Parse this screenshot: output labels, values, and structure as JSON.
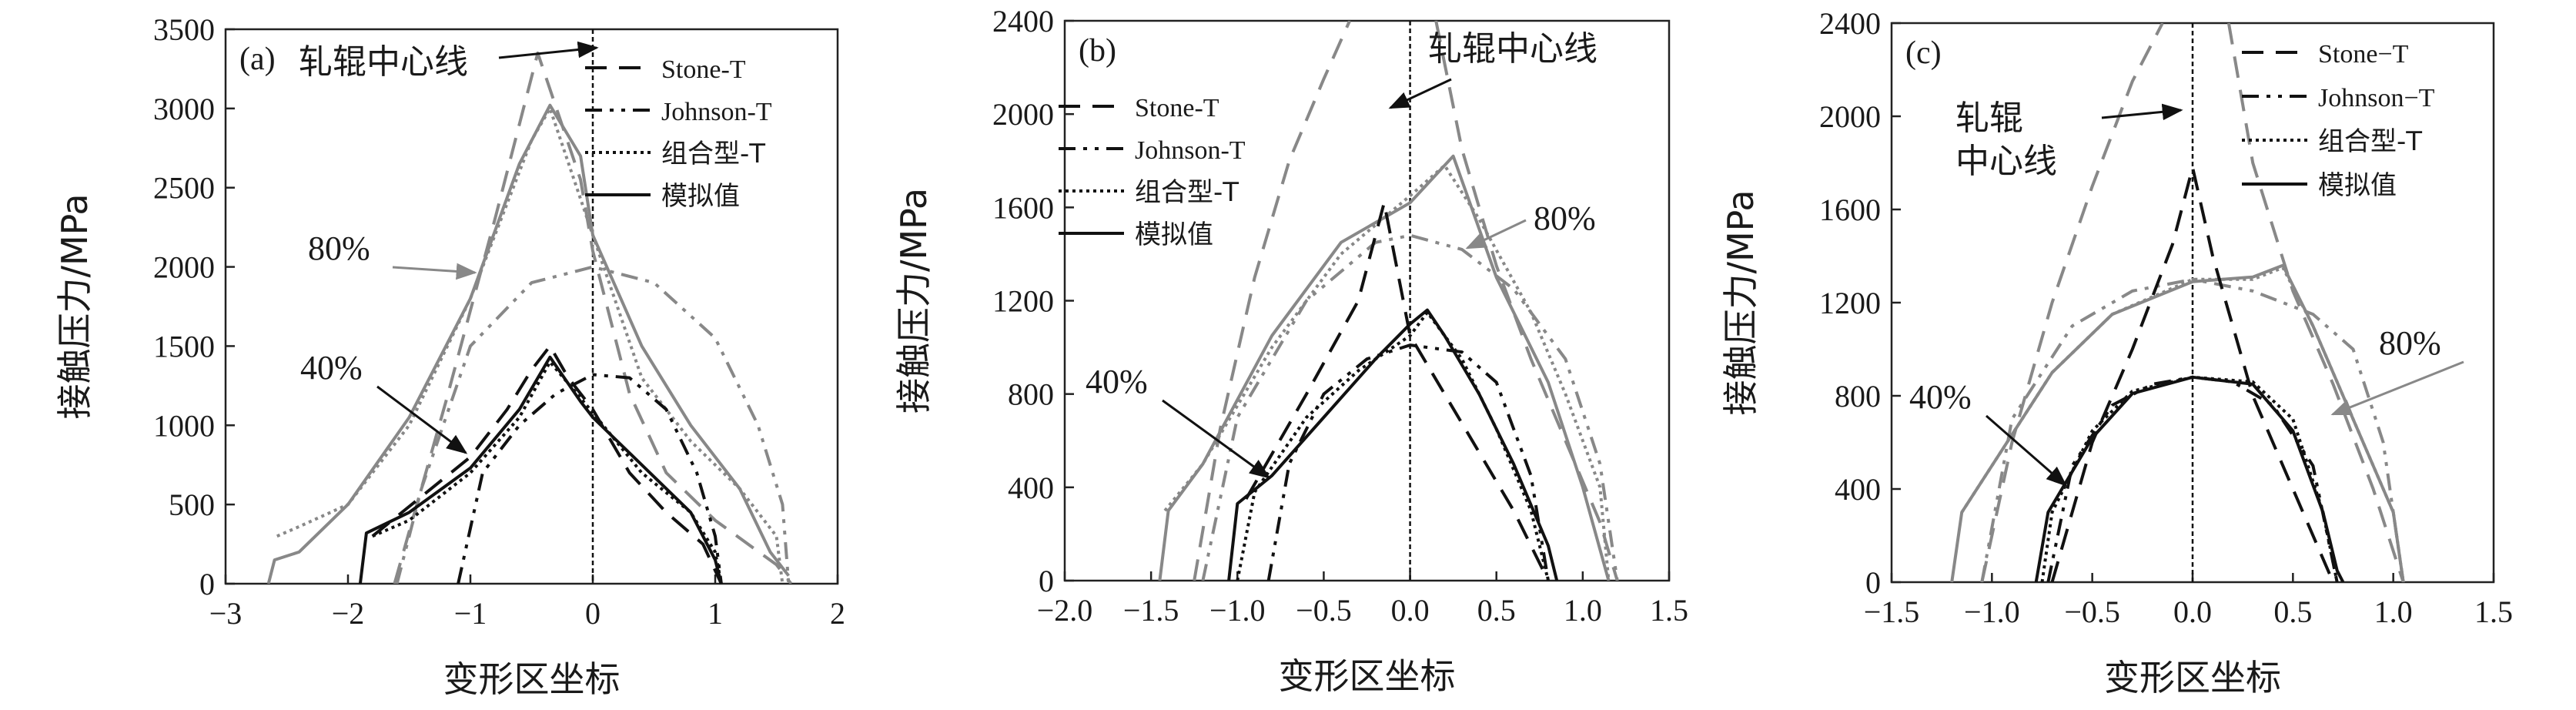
{
  "chart_data": [
    {
      "type": "line",
      "panel": "(a)",
      "xlabel": "变形区坐标",
      "ylabel": "接触压力/MPa",
      "xlim": [
        -3,
        2
      ],
      "ylim": [
        0,
        3500
      ],
      "xticks": [
        -3,
        -2,
        -1,
        0,
        1,
        2
      ],
      "yticks": [
        0,
        500,
        1000,
        1500,
        2000,
        2500,
        3000,
        3500
      ],
      "legend": [
        "Stone-T",
        "Johnson-T",
        "组合型-T",
        "模拟值"
      ],
      "legend_position": "top-right",
      "center_label": "轧辊中心线",
      "center_label_lines": [
        "轧辊中心线"
      ],
      "label_80": "80%",
      "label_40": "40%",
      "series": [
        {
          "name": "Stone-T",
          "group": "80%",
          "x": [
            -1.62,
            -1.2,
            -0.8,
            -0.45,
            -0.1,
            0.0,
            0.3,
            0.6,
            1.0,
            1.5,
            1.62
          ],
          "y": [
            0,
            1150,
            2300,
            3350,
            2550,
            2100,
            1200,
            700,
            400,
            120,
            0
          ]
        },
        {
          "name": "Johnson-T",
          "group": "80%",
          "x": [
            -1.6,
            -1.4,
            -1.0,
            -0.5,
            0.0,
            0.5,
            1.0,
            1.35,
            1.55,
            1.6
          ],
          "y": [
            0,
            600,
            1500,
            1900,
            2000,
            1900,
            1550,
            1000,
            500,
            0
          ]
        },
        {
          "name": "组合型-T",
          "group": "80%",
          "x": [
            -2.58,
            -2.4,
            -2.0,
            -1.5,
            -1.0,
            -0.5,
            -0.35,
            0.0,
            0.4,
            0.8,
            1.2,
            1.5,
            1.55
          ],
          "y": [
            300,
            360,
            500,
            1000,
            1800,
            2800,
            3000,
            2200,
            1300,
            900,
            600,
            300,
            0
          ]
        },
        {
          "name": "模拟值",
          "group": "80%",
          "x": [
            -2.65,
            -2.6,
            -2.4,
            -2.0,
            -1.5,
            -1.0,
            -0.6,
            -0.35,
            -0.1,
            0.0,
            0.4,
            0.8,
            1.2,
            1.45,
            1.6
          ],
          "y": [
            0,
            150,
            200,
            500,
            1050,
            1800,
            2650,
            3020,
            2700,
            2200,
            1500,
            1000,
            600,
            200,
            50
          ]
        },
        {
          "name": "Stone-T",
          "group": "40%",
          "x": [
            -1.8,
            -1.0,
            -0.7,
            -0.5,
            -0.35,
            -0.2,
            0.0,
            0.3,
            0.6,
            0.9,
            1.05
          ],
          "y": [
            300,
            800,
            1100,
            1350,
            1500,
            1300,
            1100,
            700,
            450,
            250,
            0
          ]
        },
        {
          "name": "Johnson-T",
          "group": "40%",
          "x": [
            -1.1,
            -0.9,
            -0.6,
            -0.3,
            0.0,
            0.3,
            0.6,
            0.85,
            1.0,
            1.05
          ],
          "y": [
            0,
            700,
            1000,
            1200,
            1320,
            1300,
            1100,
            700,
            300,
            0
          ]
        },
        {
          "name": "组合型-T",
          "group": "40%",
          "x": [
            -1.8,
            -1.5,
            -1.0,
            -0.6,
            -0.35,
            0.0,
            0.4,
            0.8,
            1.0,
            1.05
          ],
          "y": [
            300,
            400,
            700,
            1050,
            1400,
            1080,
            700,
            450,
            200,
            0
          ]
        },
        {
          "name": "模拟值",
          "group": "40%",
          "x": [
            -1.9,
            -1.85,
            -1.5,
            -1.0,
            -0.6,
            -0.35,
            -0.1,
            0.0,
            0.4,
            0.8,
            1.0,
            1.05
          ],
          "y": [
            0,
            320,
            450,
            730,
            1100,
            1430,
            1150,
            1050,
            750,
            450,
            150,
            0
          ]
        }
      ]
    },
    {
      "type": "line",
      "panel": "(b)",
      "xlabel": "变形区坐标",
      "ylabel": "接触压力/MPa",
      "xlim": [
        -2.0,
        1.5
      ],
      "ylim": [
        0,
        2400
      ],
      "xticks": [
        -2.0,
        -1.5,
        -1.0,
        -0.5,
        0.0,
        0.5,
        1.0,
        1.5
      ],
      "yticks": [
        0,
        400,
        800,
        1200,
        1600,
        2000,
        2400
      ],
      "legend": [
        "Stone-T",
        "Johnson-T",
        "组合型-T",
        "模拟值"
      ],
      "legend_position": "top-left",
      "center_label": "轧辊中心线",
      "center_label_lines": [
        "轧辊中心线"
      ],
      "label_80": "80%",
      "label_40": "40%",
      "series": [
        {
          "name": "Stone-T",
          "group": "80%",
          "x": [
            -1.25,
            -1.1,
            -0.9,
            -0.7,
            -0.5,
            -0.35
          ],
          "y": [
            0,
            650,
            1300,
            1800,
            2150,
            2400
          ]
        },
        {
          "name": "Stone-T",
          "group": "80%",
          "x": [
            0.15,
            0.3,
            0.5,
            0.7,
            0.9,
            1.1,
            1.2
          ],
          "y": [
            2400,
            1850,
            1350,
            950,
            600,
            250,
            0
          ]
        },
        {
          "name": "Johnson-T",
          "group": "80%",
          "x": [
            -1.2,
            -1.0,
            -0.6,
            -0.2,
            0.0,
            0.3,
            0.6,
            0.9,
            1.1,
            1.2
          ],
          "y": [
            0,
            700,
            1200,
            1450,
            1480,
            1420,
            1250,
            950,
            500,
            0
          ]
        },
        {
          "name": "组合型-T",
          "group": "80%",
          "x": [
            -1.42,
            -1.2,
            -0.8,
            -0.4,
            0.0,
            0.2,
            0.4,
            0.7,
            0.9,
            1.1,
            1.15
          ],
          "y": [
            300,
            500,
            1000,
            1400,
            1650,
            1780,
            1550,
            1150,
            800,
            400,
            0
          ]
        },
        {
          "name": "模拟值",
          "group": "80%",
          "x": [
            -1.45,
            -1.4,
            -1.2,
            -0.8,
            -0.4,
            0.0,
            0.1,
            0.25,
            0.5,
            0.8,
            1.0,
            1.15
          ],
          "y": [
            0,
            300,
            500,
            1050,
            1450,
            1620,
            1700,
            1820,
            1300,
            850,
            400,
            0
          ]
        },
        {
          "name": "Stone-T",
          "group": "40%",
          "x": [
            -0.95,
            -0.6,
            -0.3,
            -0.15,
            0.0,
            0.2,
            0.4,
            0.6,
            0.8
          ],
          "y": [
            350,
            800,
            1200,
            1620,
            1050,
            800,
            550,
            300,
            0
          ]
        },
        {
          "name": "Johnson-T",
          "group": "40%",
          "x": [
            -0.82,
            -0.7,
            -0.5,
            -0.25,
            0.0,
            0.3,
            0.5,
            0.7,
            0.8
          ],
          "y": [
            0,
            500,
            800,
            950,
            1010,
            980,
            850,
            450,
            0
          ]
        },
        {
          "name": "组合型-T",
          "group": "40%",
          "x": [
            -1.0,
            -0.9,
            -0.6,
            -0.3,
            0.0,
            0.1,
            0.3,
            0.5,
            0.7,
            0.8
          ],
          "y": [
            0,
            380,
            700,
            900,
            1050,
            1150,
            950,
            650,
            300,
            0
          ]
        },
        {
          "name": "模拟值",
          "group": "40%",
          "x": [
            -1.05,
            -1.0,
            -0.8,
            -0.5,
            -0.2,
            0.0,
            0.1,
            0.2,
            0.4,
            0.6,
            0.8,
            0.85
          ],
          "y": [
            0,
            330,
            450,
            700,
            950,
            1100,
            1160,
            1050,
            800,
            500,
            150,
            0
          ]
        }
      ]
    },
    {
      "type": "line",
      "panel": "(c)",
      "xlabel": "变形区坐标",
      "ylabel": "接触压力/MPa",
      "xlim": [
        -1.5,
        1.5
      ],
      "ylim": [
        0,
        2400
      ],
      "xticks": [
        -1.5,
        -1.0,
        -0.5,
        0.0,
        0.5,
        1.0,
        1.5
      ],
      "yticks": [
        0,
        400,
        800,
        1200,
        1600,
        2000,
        2400
      ],
      "legend": [
        "Stone−T",
        "Johnson−T",
        "组合型-T",
        "模拟值"
      ],
      "legend_position": "top-right",
      "center_label": "轧辊中心线",
      "center_label_lines": [
        "轧辊",
        "中心线"
      ],
      "label_80": "80%",
      "label_40": "40%",
      "series": [
        {
          "name": "Stone−T",
          "group": "80%",
          "x": [
            -1.05,
            -0.9,
            -0.7,
            -0.5,
            -0.3,
            -0.15
          ],
          "y": [
            0,
            600,
            1200,
            1700,
            2150,
            2400
          ]
        },
        {
          "name": "Stone−T",
          "group": "80%",
          "x": [
            0.18,
            0.3,
            0.5,
            0.7,
            0.9,
            1.05
          ],
          "y": [
            2400,
            1800,
            1250,
            850,
            400,
            0
          ]
        },
        {
          "name": "Johnson−T",
          "group": "80%",
          "x": [
            -1.05,
            -0.9,
            -0.6,
            -0.3,
            0.0,
            0.3,
            0.6,
            0.8,
            0.95,
            1.05
          ],
          "y": [
            0,
            700,
            1100,
            1250,
            1300,
            1250,
            1150,
            1000,
            600,
            0
          ]
        },
        {
          "name": "组合型-T",
          "group": "80%",
          "x": [
            -1.15,
            -1.0,
            -0.7,
            -0.4,
            0.0,
            0.3,
            0.45,
            0.6,
            0.8,
            1.0,
            1.05
          ],
          "y": [
            300,
            500,
            900,
            1150,
            1300,
            1300,
            1350,
            1100,
            700,
            300,
            0
          ]
        },
        {
          "name": "模拟值",
          "group": "80%",
          "x": [
            -1.2,
            -1.15,
            -1.0,
            -0.7,
            -0.4,
            0.0,
            0.3,
            0.45,
            0.6,
            0.8,
            1.0,
            1.05
          ],
          "y": [
            0,
            300,
            500,
            900,
            1150,
            1290,
            1310,
            1360,
            1100,
            700,
            300,
            0
          ]
        },
        {
          "name": "Stone−T",
          "group": "40%",
          "x": [
            -0.7,
            -0.5,
            -0.3,
            -0.1,
            0.0,
            0.1,
            0.3,
            0.5,
            0.7
          ],
          "y": [
            0,
            600,
            1000,
            1450,
            1780,
            1400,
            800,
            400,
            0
          ]
        },
        {
          "name": "Johnson−T",
          "group": "40%",
          "x": [
            -0.72,
            -0.6,
            -0.4,
            -0.2,
            0.0,
            0.2,
            0.4,
            0.6,
            0.72
          ],
          "y": [
            0,
            500,
            760,
            850,
            880,
            860,
            760,
            500,
            0
          ]
        },
        {
          "name": "组合型-T",
          "group": "40%",
          "x": [
            -0.75,
            -0.7,
            -0.5,
            -0.3,
            0.0,
            0.3,
            0.5,
            0.65,
            0.72
          ],
          "y": [
            0,
            300,
            650,
            820,
            880,
            860,
            700,
            300,
            0
          ]
        },
        {
          "name": "模拟值",
          "group": "40%",
          "x": [
            -0.78,
            -0.72,
            -0.5,
            -0.3,
            0.0,
            0.3,
            0.5,
            0.65,
            0.72,
            0.75
          ],
          "y": [
            0,
            300,
            620,
            810,
            880,
            850,
            650,
            300,
            50,
            0
          ]
        }
      ]
    }
  ]
}
